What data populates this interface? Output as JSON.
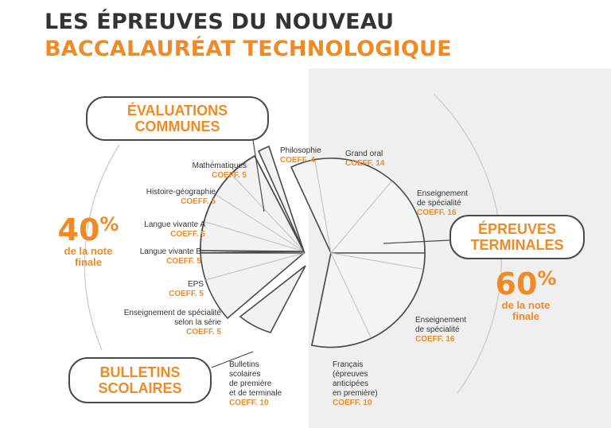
{
  "title": {
    "line1": "LES ÉPREUVES DU NOUVEAU",
    "line2": "BACCALAURÉAT TECHNOLOGIQUE"
  },
  "colors": {
    "accent": "#f08a24",
    "text": "#333333",
    "panel": "#efefef",
    "line": "#4a4a4a"
  },
  "groups": {
    "evaluations": "ÉVALUATIONS\nCOMMUNES",
    "terminales": "ÉPREUVES\nTERMINALES",
    "bulletins": "BULLETINS\nSCOLAIRES"
  },
  "shares": {
    "left_num": "40",
    "left_sym": "%",
    "left_sub": "de la note\nfinale",
    "right_num": "60",
    "right_sym": "%",
    "right_sub": "de la note\nfinale"
  },
  "items": {
    "maths": {
      "name": "Mathématiques",
      "coeff": "COEFF. 5"
    },
    "histgeo": {
      "name": "Histoire-géographie",
      "coeff": "COEFF. 5"
    },
    "lva": {
      "name": "Langue vivante A",
      "coeff": "COEFF. 5"
    },
    "lvb": {
      "name": "Langue vivante B",
      "coeff": "COEFF. 5"
    },
    "eps": {
      "name": "EPS",
      "coeff": "COEFF. 5"
    },
    "specserie": {
      "name": "Enseignement de spécialité\nselon la série",
      "coeff": "COEFF. 5"
    },
    "bulletins": {
      "name": "Bulletins\nscolaires\nde première\net de terminale",
      "coeff": "COEFF. 10"
    },
    "philo": {
      "name": "Philosophie",
      "coeff": "COEFF. 4"
    },
    "oral": {
      "name": "Grand oral",
      "coeff": "COEFF. 14"
    },
    "spec1": {
      "name": "Enseignement\nde spécialité",
      "coeff": "COEFF. 16"
    },
    "spec2": {
      "name": "Enseignement\nde spécialité",
      "coeff": "COEFF. 16"
    },
    "francais": {
      "name": "Français\n(épreuves\nanticipées\nen première)",
      "coeff": "COEFF. 10"
    }
  }
}
